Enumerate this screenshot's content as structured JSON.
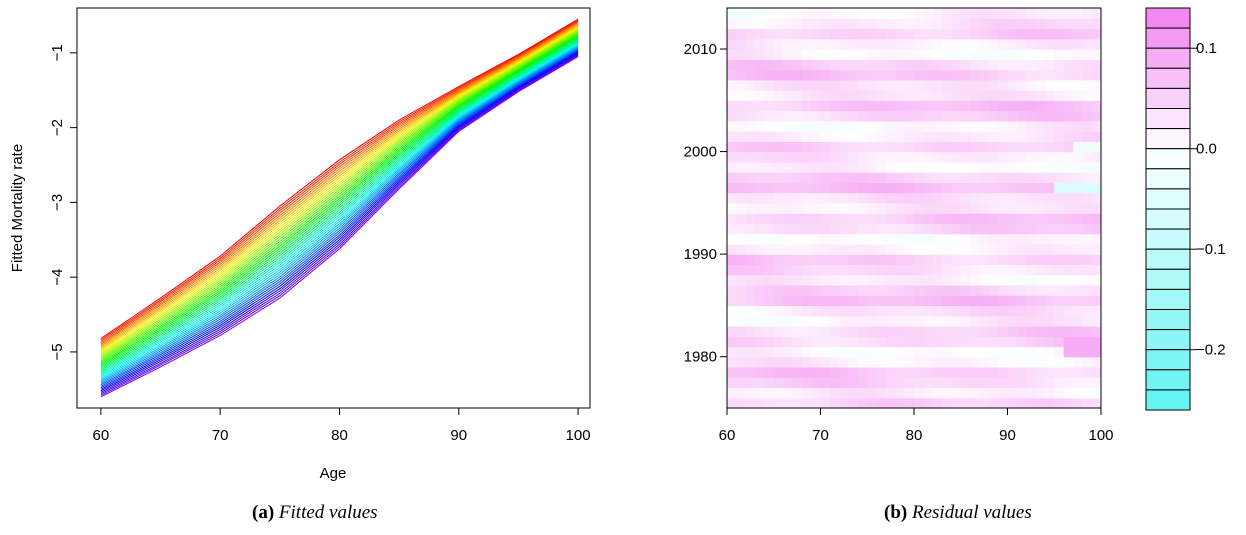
{
  "chart_data": [
    {
      "type": "line",
      "xlabel": "Age",
      "ylabel": "Fitted Mortality rate",
      "xlim": [
        58,
        101
      ],
      "ylim": [
        -5.75,
        -0.4
      ],
      "xticks": [
        60,
        70,
        80,
        90,
        100
      ],
      "yticks": [
        -5,
        -4,
        -3,
        -2,
        -1
      ],
      "x": [
        60,
        65,
        70,
        75,
        80,
        85,
        90,
        95,
        100
      ],
      "series_count": 40,
      "first_series": [
        -4.82,
        -4.28,
        -3.72,
        -3.05,
        -2.43,
        -1.9,
        -1.45,
        -1.02,
        -0.55
      ],
      "last_series": [
        -5.6,
        -5.2,
        -4.78,
        -4.28,
        -3.62,
        -2.82,
        -2.05,
        -1.52,
        -1.05
      ],
      "colormap": "rainbow (red to violet)",
      "grid": false
    },
    {
      "type": "heatmap",
      "xlim": [
        60,
        100
      ],
      "ylim": [
        1975,
        2014
      ],
      "xticks": [
        60,
        70,
        80,
        90,
        100
      ],
      "yticks": [
        1980,
        1990,
        2000,
        2010
      ],
      "colorbar": {
        "range": [
          -0.26,
          0.14
        ],
        "ticks": [
          0.1,
          0.0,
          -0.1,
          -0.2
        ],
        "tick_labels": [
          "0.1",
          "0.0",
          "−0.1",
          "−0.2"
        ],
        "levels": 20,
        "low_color": "#5ff2f2",
        "high_color": "#f27ff0"
      }
    }
  ],
  "captions": [
    {
      "label": "(a)",
      "text": "Fitted values"
    },
    {
      "label": "(b)",
      "text": "Residual values"
    }
  ]
}
